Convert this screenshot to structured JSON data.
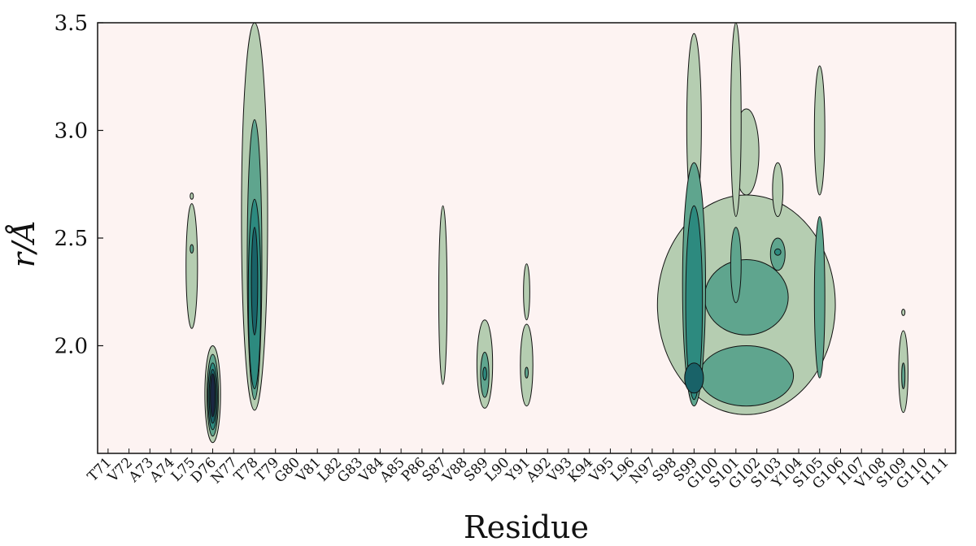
{
  "chart_data": {
    "type": "contour",
    "title": "",
    "xlabel": "Residue",
    "ylabel": "r/Å",
    "ylim": [
      1.5,
      3.5
    ],
    "yticks": [
      2.0,
      2.5,
      3.0,
      3.5
    ],
    "ytick_labels": [
      "2.0",
      "2.5",
      "3.0",
      "3.5"
    ],
    "categories": [
      "T71",
      "V72",
      "A73",
      "A74",
      "L75",
      "D76",
      "N77",
      "T78",
      "T79",
      "G80",
      "V81",
      "L82",
      "G83",
      "V84",
      "A85",
      "P86",
      "S87",
      "V88",
      "S89",
      "L90",
      "Y91",
      "A92",
      "V93",
      "K94",
      "V95",
      "L96",
      "N97",
      "S98",
      "S99",
      "G100",
      "S101",
      "G102",
      "S103",
      "Y104",
      "S105",
      "G106",
      "I107",
      "V108",
      "S109",
      "G110",
      "I111"
    ],
    "levels": [
      "level-1",
      "level-2",
      "level-3",
      "level-4",
      "level-5"
    ],
    "colors": {
      "background": "#fdf3f2",
      "level_1": "#b5cdb1",
      "level_2": "#5fa58e",
      "level_3": "#2d8a7f",
      "level_4": "#196268",
      "level_5": "#1a2742",
      "outline": "#111111"
    },
    "series": [
      {
        "name": "L75",
        "x": 4,
        "blobs": [
          {
            "level": 1,
            "y0": 2.08,
            "y1": 2.66,
            "w": 0.55
          },
          {
            "level": 1,
            "y0": 2.68,
            "y1": 2.71,
            "w": 0.1
          },
          {
            "level": 2,
            "y0": 2.43,
            "y1": 2.47,
            "w": 0.15
          }
        ]
      },
      {
        "name": "D76",
        "x": 5,
        "blobs": [
          {
            "level": 1,
            "y0": 1.55,
            "y1": 2.0,
            "w": 0.75
          },
          {
            "level": 2,
            "y0": 1.58,
            "y1": 1.96,
            "w": 0.55
          },
          {
            "level": 3,
            "y0": 1.61,
            "y1": 1.92,
            "w": 0.45
          },
          {
            "level": 4,
            "y0": 1.64,
            "y1": 1.89,
            "w": 0.34
          },
          {
            "level": 5,
            "y0": 1.67,
            "y1": 1.87,
            "w": 0.22
          }
        ]
      },
      {
        "name": "T78",
        "x": 7,
        "blobs": [
          {
            "level": 1,
            "y0": 1.7,
            "y1": 3.5,
            "w": 1.25
          },
          {
            "level": 2,
            "y0": 1.75,
            "y1": 3.05,
            "w": 0.7
          },
          {
            "level": 3,
            "y0": 1.8,
            "y1": 2.68,
            "w": 0.6
          },
          {
            "level": 4,
            "y0": 2.05,
            "y1": 2.55,
            "w": 0.3
          }
        ]
      },
      {
        "name": "S87",
        "x": 16,
        "blobs": [
          {
            "level": 1,
            "y0": 1.82,
            "y1": 2.65,
            "w": 0.4
          }
        ]
      },
      {
        "name": "S89",
        "x": 18,
        "blobs": [
          {
            "level": 1,
            "y0": 1.71,
            "y1": 2.12,
            "w": 0.75
          },
          {
            "level": 2,
            "y0": 1.76,
            "y1": 1.97,
            "w": 0.4
          },
          {
            "level": 3,
            "y0": 1.84,
            "y1": 1.9,
            "w": 0.18
          }
        ]
      },
      {
        "name": "Y91",
        "x": 20,
        "blobs": [
          {
            "level": 1,
            "y0": 1.72,
            "y1": 2.1,
            "w": 0.6
          },
          {
            "level": 1,
            "y0": 2.12,
            "y1": 2.38,
            "w": 0.3
          },
          {
            "level": 2,
            "y0": 1.85,
            "y1": 1.9,
            "w": 0.14
          }
        ]
      },
      {
        "name": "N97-S105",
        "x": 30.5,
        "blobs": [
          {
            "level": 1,
            "y0": 1.68,
            "y1": 2.7,
            "w": 8.5
          },
          {
            "level": 1,
            "y0": 2.7,
            "y1": 3.1,
            "w": 1.2
          },
          {
            "level": 2,
            "y0": 1.72,
            "y1": 2.0,
            "w": 4.5
          },
          {
            "level": 2,
            "y0": 2.05,
            "y1": 2.4,
            "w": 4.0
          }
        ]
      },
      {
        "name": "S99",
        "x": 28,
        "blobs": [
          {
            "level": 1,
            "y0": 2.6,
            "y1": 3.45,
            "w": 0.7
          },
          {
            "level": 2,
            "y0": 1.72,
            "y1": 2.85,
            "w": 1.1
          },
          {
            "level": 3,
            "y0": 1.75,
            "y1": 2.65,
            "w": 0.8
          },
          {
            "level": 4,
            "y0": 1.78,
            "y1": 1.92,
            "w": 0.9
          }
        ]
      },
      {
        "name": "S101",
        "x": 30,
        "blobs": [
          {
            "level": 1,
            "y0": 2.6,
            "y1": 3.5,
            "w": 0.5
          },
          {
            "level": 2,
            "y0": 2.2,
            "y1": 2.55,
            "w": 0.5
          }
        ]
      },
      {
        "name": "S103",
        "x": 32,
        "blobs": [
          {
            "level": 1,
            "y0": 2.6,
            "y1": 2.85,
            "w": 0.5
          },
          {
            "level": 2,
            "y0": 2.35,
            "y1": 2.5,
            "w": 0.7
          },
          {
            "level": 3,
            "y0": 2.42,
            "y1": 2.45,
            "w": 0.3
          }
        ]
      },
      {
        "name": "S105",
        "x": 34,
        "blobs": [
          {
            "level": 1,
            "y0": 2.7,
            "y1": 3.3,
            "w": 0.5
          },
          {
            "level": 2,
            "y0": 1.85,
            "y1": 2.6,
            "w": 0.5
          }
        ]
      },
      {
        "name": "S109",
        "x": 38,
        "blobs": [
          {
            "level": 1,
            "y0": 1.69,
            "y1": 2.07,
            "w": 0.45
          },
          {
            "level": 1,
            "y0": 2.14,
            "y1": 2.17,
            "w": 0.12
          },
          {
            "level": 2,
            "y0": 1.8,
            "y1": 1.92,
            "w": 0.15
          }
        ]
      }
    ]
  }
}
